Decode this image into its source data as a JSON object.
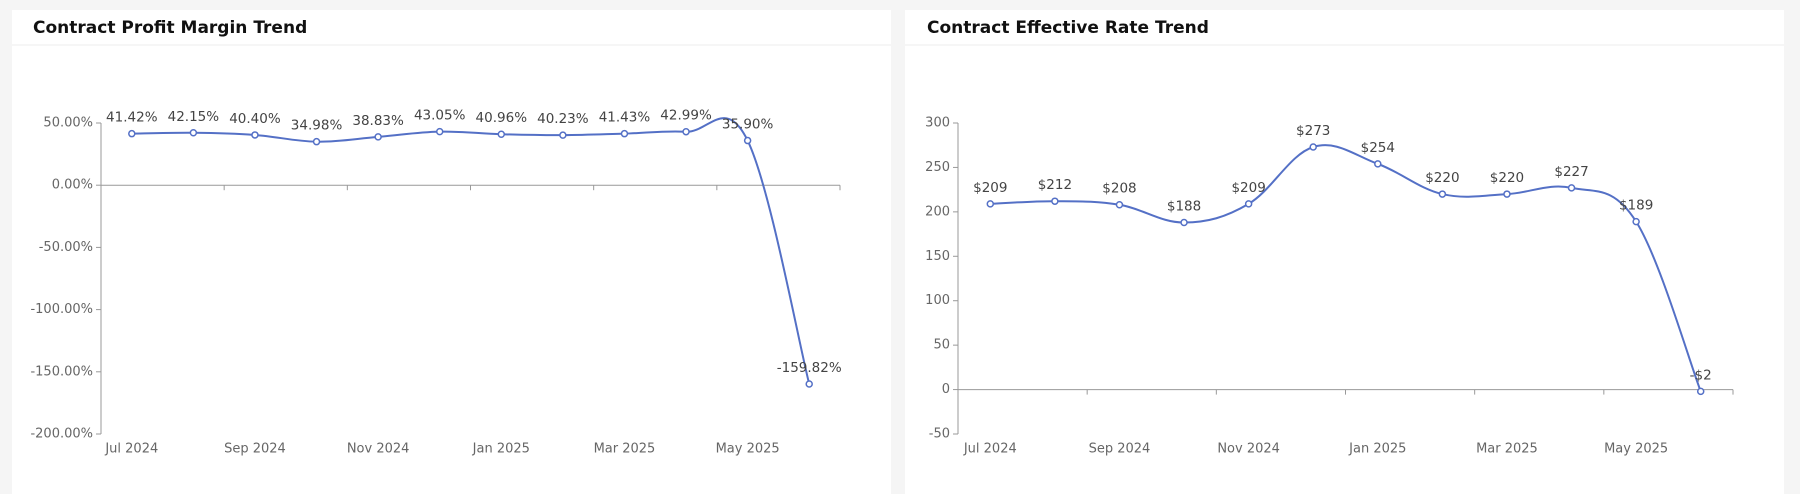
{
  "chart_data": [
    {
      "type": "line",
      "title": "Contract Profit Margin Trend",
      "categories": [
        "Jul 2024",
        null,
        "Sep 2024",
        null,
        "Nov 2024",
        null,
        "Jan 2025",
        null,
        "Mar 2025",
        null,
        "May 2025",
        null
      ],
      "values": [
        41.42,
        42.15,
        40.4,
        34.98,
        38.83,
        43.05,
        40.96,
        40.23,
        41.43,
        42.99,
        35.9,
        -159.82
      ],
      "value_labels": [
        "41.42%",
        "42.15%",
        "40.40%",
        "34.98%",
        "38.83%",
        "43.05%",
        "40.96%",
        "40.23%",
        "41.43%",
        "42.99%",
        "35.90%",
        "-159.82%"
      ],
      "color": "#5470c6",
      "ylim": [
        -200,
        50
      ],
      "yticks": [
        {
          "value": -200,
          "label": "-200.00%"
        },
        {
          "value": -150,
          "label": "-150.00%"
        },
        {
          "value": -100,
          "label": "-100.00%"
        },
        {
          "value": -50,
          "label": "-50.00%"
        },
        {
          "value": 0,
          "label": "0.00%"
        },
        {
          "value": 50,
          "label": "50.00%"
        }
      ]
    },
    {
      "type": "line",
      "title": "Contract Effective Rate Trend",
      "categories": [
        "Jul 2024",
        null,
        "Sep 2024",
        null,
        "Nov 2024",
        null,
        "Jan 2025",
        null,
        "Mar 2025",
        null,
        "May 2025",
        null
      ],
      "values": [
        209,
        212,
        208,
        188,
        209,
        273,
        254,
        220,
        220,
        227,
        189,
        -2
      ],
      "value_labels": [
        "$209",
        "$212",
        "$208",
        "$188",
        "$209",
        "$273",
        "$254",
        "$220",
        "$220",
        "$227",
        "$189",
        "-$2"
      ],
      "color": "#5470c6",
      "ylim": [
        -50,
        300
      ],
      "yticks": [
        -50,
        0,
        50,
        100,
        150,
        200,
        250,
        300
      ]
    }
  ]
}
